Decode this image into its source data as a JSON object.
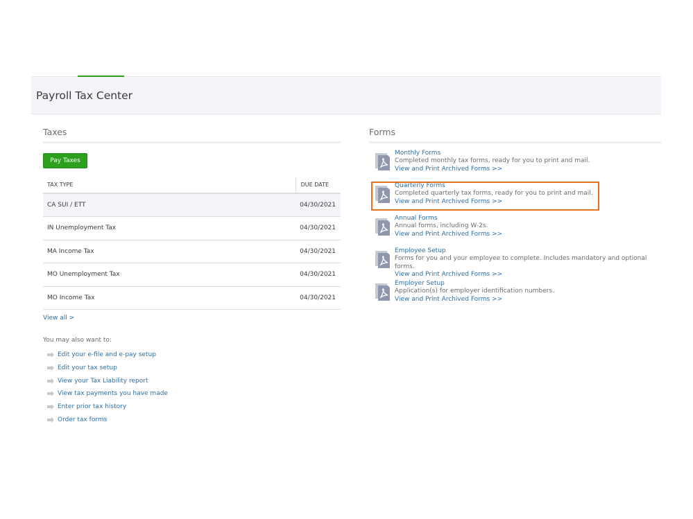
{
  "page": {
    "title": "Payroll Tax Center"
  },
  "taxes": {
    "heading": "Taxes",
    "pay_button": "Pay Taxes",
    "columns": [
      "TAX TYPE",
      "DUE DATE"
    ],
    "rows": [
      {
        "type": "CA SUI / ETT",
        "due": "04/30/2021"
      },
      {
        "type": "IN Unemployment Tax",
        "due": "04/30/2021"
      },
      {
        "type": "MA Income Tax",
        "due": "04/30/2021"
      },
      {
        "type": "MO Unemployment Tax",
        "due": "04/30/2021"
      },
      {
        "type": "MO Income Tax",
        "due": "04/30/2021"
      }
    ],
    "view_all": "View all >",
    "also_label": "You may also want to:",
    "also_links": [
      "Edit your e-file and e-pay setup",
      "Edit your tax setup",
      "View your Tax Liability report",
      "View tax payments you have made",
      "Enter prior tax history",
      "Order tax forms"
    ]
  },
  "forms": {
    "heading": "Forms",
    "highlight_color": "#e8701a",
    "items": [
      {
        "title": "Monthly Forms",
        "desc": "Completed monthly tax forms, ready for you to print and mail.",
        "link": "View and Print Archived Forms >>"
      },
      {
        "title": "Quarterly Forms",
        "desc": "Completed quarterly tax forms, ready for you to print and mail.",
        "link": "View and Print Archived Forms >>"
      },
      {
        "title": "Annual Forms",
        "desc": "Annual forms, including W-2s.",
        "link": "View and Print Archived Forms >>"
      },
      {
        "title": "Employee Setup",
        "desc": "Forms for you and your employee to complete. Includes mandatory and optional forms.",
        "link": "View and Print Archived Forms >>"
      },
      {
        "title": "Employer Setup",
        "desc": "Application(s) for employer identification numbers.",
        "link": "View and Print Archived Forms >>"
      }
    ]
  }
}
